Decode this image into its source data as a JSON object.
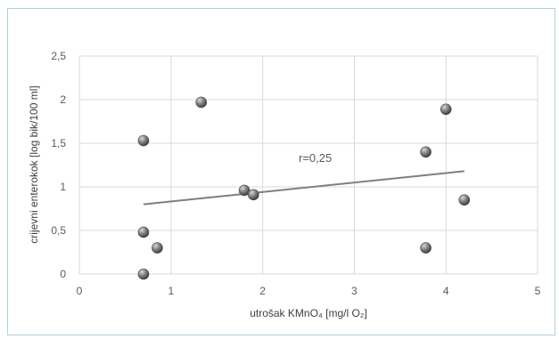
{
  "chart_data": {
    "type": "scatter",
    "title": "",
    "xlabel": "utrošak KMnO₄ [mg/l O₂]",
    "ylabel": "crijevni enterokok [log bik/100 ml]",
    "xlim": [
      0,
      5
    ],
    "ylim": [
      0,
      2.5
    ],
    "x_ticks": [
      "0",
      "1",
      "2",
      "3",
      "4",
      "5"
    ],
    "y_ticks": [
      "0",
      "0,5",
      "1",
      "1,5",
      "2",
      "2,5"
    ],
    "grid": true,
    "legend": "none",
    "points": [
      {
        "x": 0.7,
        "y": 0.0
      },
      {
        "x": 0.7,
        "y": 0.48
      },
      {
        "x": 0.7,
        "y": 1.53
      },
      {
        "x": 0.85,
        "y": 0.3
      },
      {
        "x": 1.33,
        "y": 1.97
      },
      {
        "x": 1.8,
        "y": 0.96
      },
      {
        "x": 1.9,
        "y": 0.91
      },
      {
        "x": 3.78,
        "y": 1.4
      },
      {
        "x": 3.78,
        "y": 0.3
      },
      {
        "x": 4.0,
        "y": 1.89
      },
      {
        "x": 4.2,
        "y": 0.85
      }
    ],
    "trendline": {
      "x": [
        0.7,
        4.2
      ],
      "y": [
        0.8,
        1.18
      ]
    },
    "annotation": "r=0,25",
    "colors": {
      "marker": "#7f7f7f",
      "trendline": "#7f7f7f",
      "grid": "#d9d9d9",
      "frame": "#a9d4dc"
    }
  }
}
